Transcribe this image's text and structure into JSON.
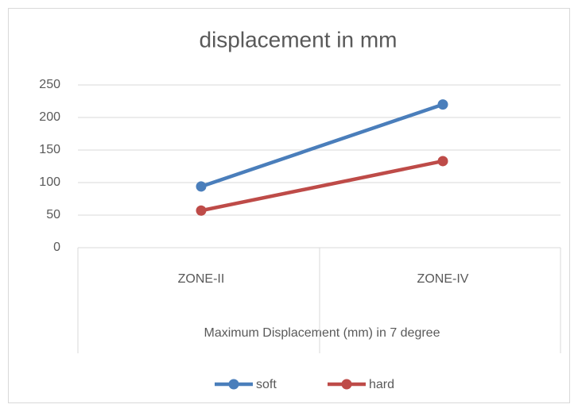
{
  "chart_data": {
    "type": "line",
    "title": "displacement in mm",
    "x_label": "Maximum Displacement (mm) in 7 degree",
    "categories": [
      "ZONE-II",
      "ZONE-IV"
    ],
    "series": [
      {
        "name": "soft",
        "color": "#4a7ebb",
        "values": [
          94,
          220
        ]
      },
      {
        "name": "hard",
        "color": "#be4b48",
        "values": [
          57,
          133
        ]
      }
    ],
    "ylim": [
      0,
      250
    ],
    "yticks": [
      0,
      50,
      100,
      150,
      200,
      250
    ],
    "grid": true,
    "legend": "bottom"
  }
}
